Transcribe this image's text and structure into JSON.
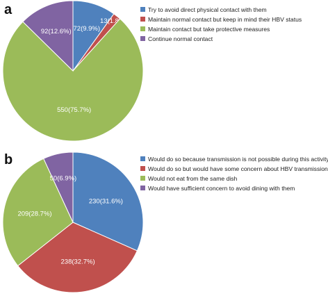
{
  "chart_data": [
    {
      "type": "pie",
      "panel_label": "a",
      "title": "",
      "legend_position": "right",
      "slices": [
        {
          "label": "Try to avoid direct physical contact with them",
          "value": 72,
          "value_text": "72(9.9%)",
          "color": "#4F81BD"
        },
        {
          "label": "Maintain normal contact but keep in mind their HBV status",
          "value": 13,
          "value_text": "13(1.8%)",
          "color": "#C0504D"
        },
        {
          "label": "Maintain contact but take protective measures",
          "value": 550,
          "value_text": "550(75.7%)",
          "color": "#9BBB59"
        },
        {
          "label": "Continue normal contact",
          "value": 92,
          "value_text": "92(12.6%)",
          "color": "#8064A2"
        }
      ]
    },
    {
      "type": "pie",
      "panel_label": "b",
      "title": "",
      "legend_position": "right",
      "slices": [
        {
          "label": "Would do so because transmission is not possible during this activity",
          "value": 230,
          "value_text": "230(31.6%)",
          "color": "#4F81BD"
        },
        {
          "label": "Would do so but would have some concern about HBV transmission",
          "value": 238,
          "value_text": "238(32.7%)",
          "color": "#C0504D"
        },
        {
          "label": "Would not eat from the same dish",
          "value": 209,
          "value_text": "209(28.7%)",
          "color": "#9BBB59"
        },
        {
          "label": "Would have sufficient concern to avoid dining with them",
          "value": 50,
          "value_text": "50(6.9%)",
          "color": "#8064A2"
        }
      ]
    }
  ]
}
